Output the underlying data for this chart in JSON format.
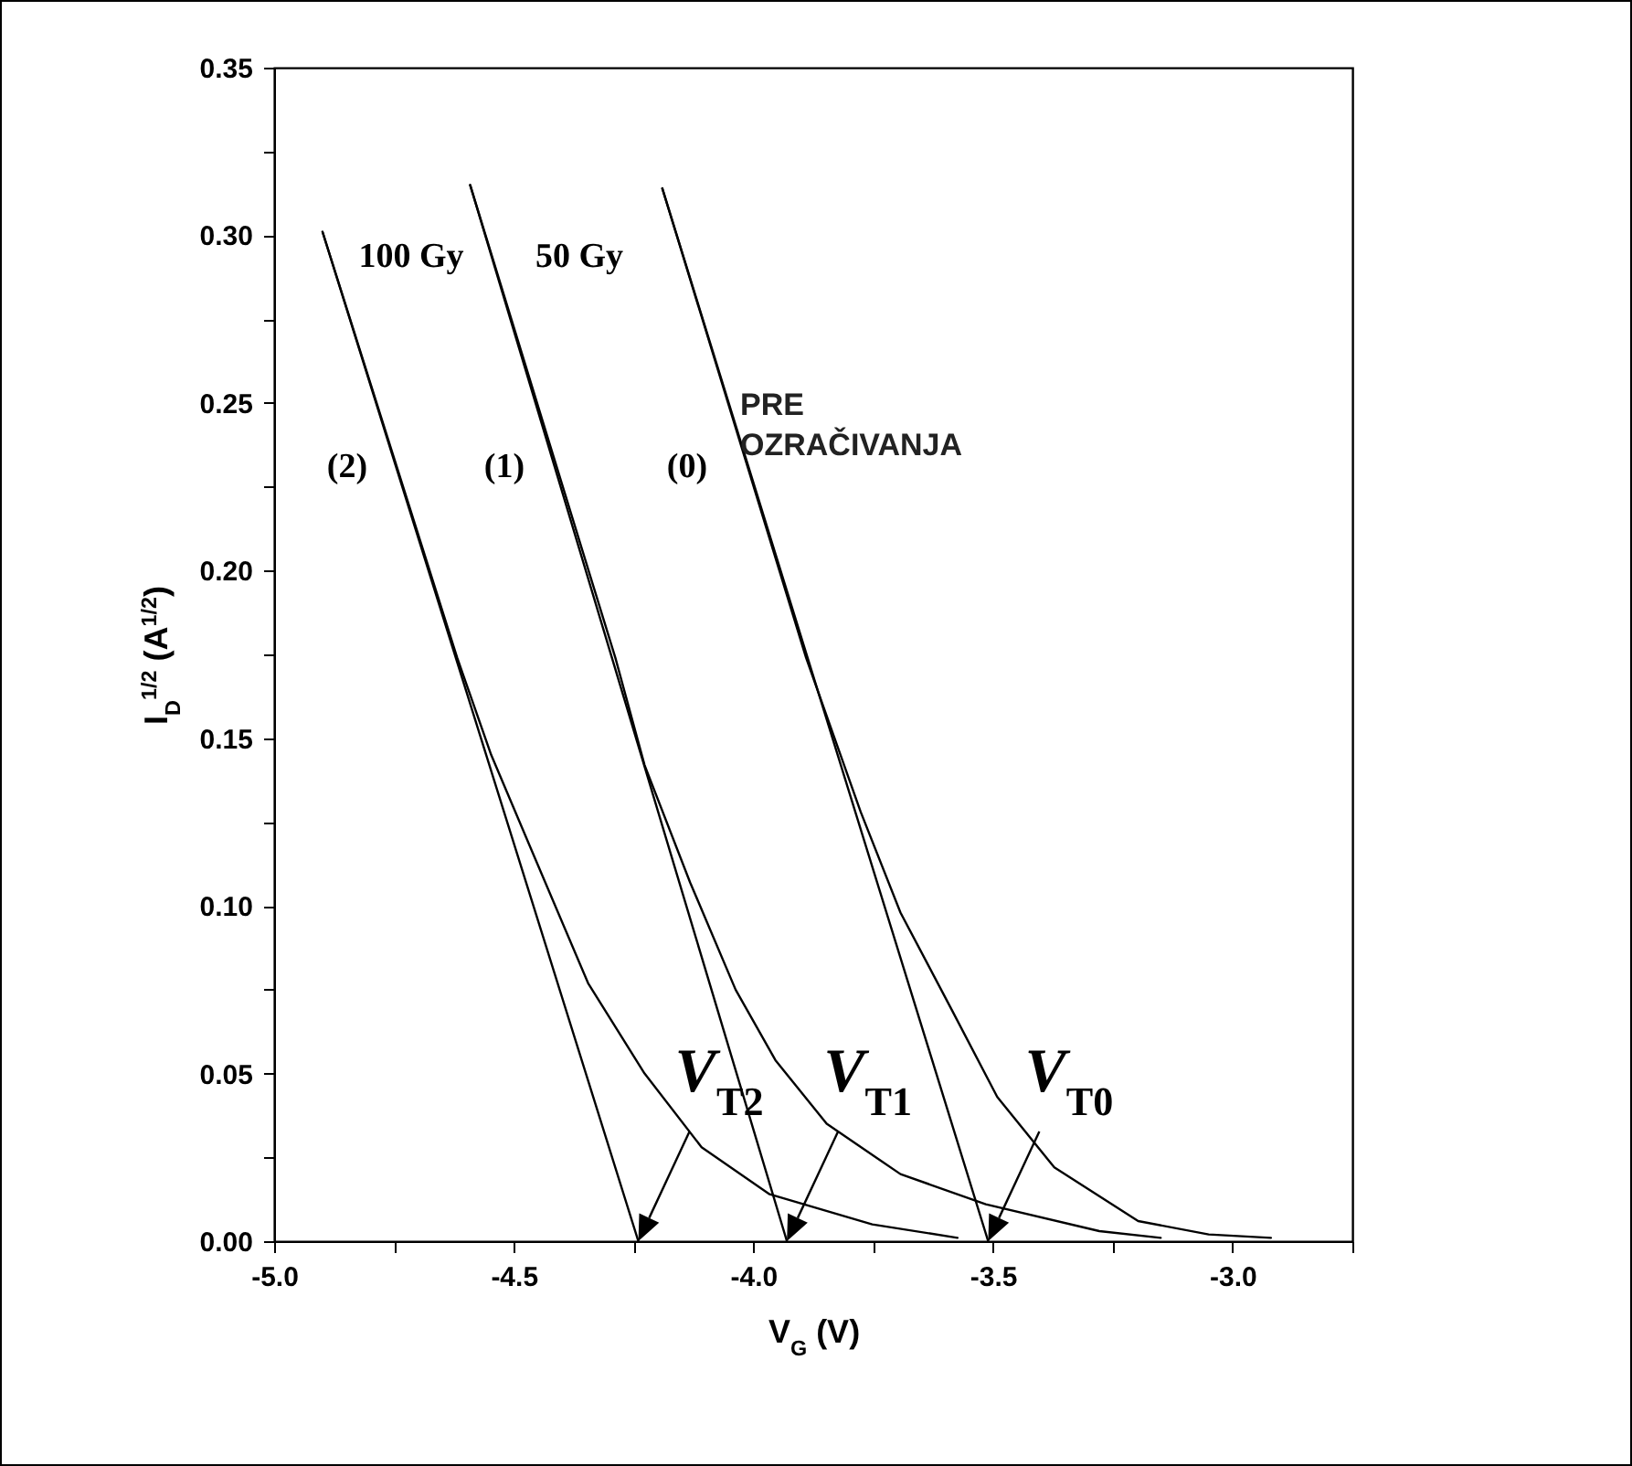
{
  "chart_data": {
    "type": "line",
    "xlabel": "V$_{G}$ (V)",
    "ylabel": "I$_{D}$$^{1/2}$ (A$^{1/2}$)",
    "xlim": [
      -5,
      -2.75
    ],
    "ylim": [
      0,
      0.35
    ],
    "xticks": [
      {
        "value": -5,
        "label": "-5.0"
      },
      {
        "value": -4.75,
        "label": null
      },
      {
        "value": -4.5,
        "label": "-4.5"
      },
      {
        "value": -4.25,
        "label": null
      },
      {
        "value": -4,
        "label": "-4.0"
      },
      {
        "value": -3.75,
        "label": null
      },
      {
        "value": -3.5,
        "label": "-3.5"
      },
      {
        "value": -3.25,
        "label": null
      },
      {
        "value": -3,
        "label": "-3.0"
      },
      {
        "value": -2.75,
        "label": null
      }
    ],
    "yticks": [
      {
        "value": 0,
        "label": "0.00"
      },
      {
        "value": 0.025,
        "label": null
      },
      {
        "value": 0.05,
        "label": "0.05"
      },
      {
        "value": 0.075,
        "label": null
      },
      {
        "value": 0.1,
        "label": "0.10"
      },
      {
        "value": 0.125,
        "label": null
      },
      {
        "value": 0.15,
        "label": "0.15"
      },
      {
        "value": 0.175,
        "label": null
      },
      {
        "value": 0.2,
        "label": "0.20"
      },
      {
        "value": 0.225,
        "label": null
      },
      {
        "value": 0.25,
        "label": "0.25"
      },
      {
        "value": 0.275,
        "label": null
      },
      {
        "value": 0.3,
        "label": "0.30"
      },
      {
        "value": 0.325,
        "label": null
      },
      {
        "value": 0.35,
        "label": "0.35"
      }
    ],
    "series": [
      {
        "color": "#000000",
        "x": [
          -4.19,
          -3.89,
          -3.776,
          -3.693,
          -3.586,
          -3.491,
          -3.372,
          -3.197,
          -3.05,
          -2.92
        ],
        "values": [
          0.314,
          0.174,
          0.128,
          0.098,
          0.069,
          0.043,
          0.022,
          0.006,
          0.002,
          0.001
        ]
      },
      {
        "color": "#000000",
        "x": [
          -4.19,
          -3.51
        ],
        "values": [
          0.314,
          0
        ]
      },
      {
        "color": "#000000",
        "x": [
          -4.591,
          -4.288,
          -4.227,
          -4.132,
          -4.037,
          -3.954,
          -3.847,
          -3.693,
          -3.515,
          -3.278,
          -3.15
        ],
        "values": [
          0.315,
          0.174,
          0.142,
          0.107,
          0.075,
          0.054,
          0.035,
          0.02,
          0.011,
          0.003,
          0.001
        ]
      },
      {
        "color": "#000000",
        "x": [
          -4.591,
          -3.93
        ],
        "values": [
          0.315,
          0
        ]
      },
      {
        "color": "#000000",
        "x": [
          -4.899,
          -4.618,
          -4.547,
          -4.464,
          -4.345,
          -4.227,
          -4.108,
          -3.966,
          -3.752,
          -3.574
        ],
        "values": [
          0.301,
          0.174,
          0.145,
          0.117,
          0.077,
          0.05,
          0.028,
          0.014,
          0.005,
          0.001
        ]
      },
      {
        "color": "#000000",
        "x": [
          -4.899,
          -4.24
        ],
        "values": [
          0.301,
          0
        ]
      }
    ],
    "annotations": [
      "100 Gy",
      "50 Gy",
      "(2)",
      "(1)",
      "(0)",
      "PRE\nOZRAČIVANJA",
      {
        "text": "V$_{T2}$",
        "x": -4.24,
        "y": 0
      },
      {
        "text": "V$_{T1}$",
        "x": -3.93,
        "y": 0
      },
      {
        "text": "V$_{T0}$",
        "x": -3.51,
        "y": 0
      }
    ]
  }
}
